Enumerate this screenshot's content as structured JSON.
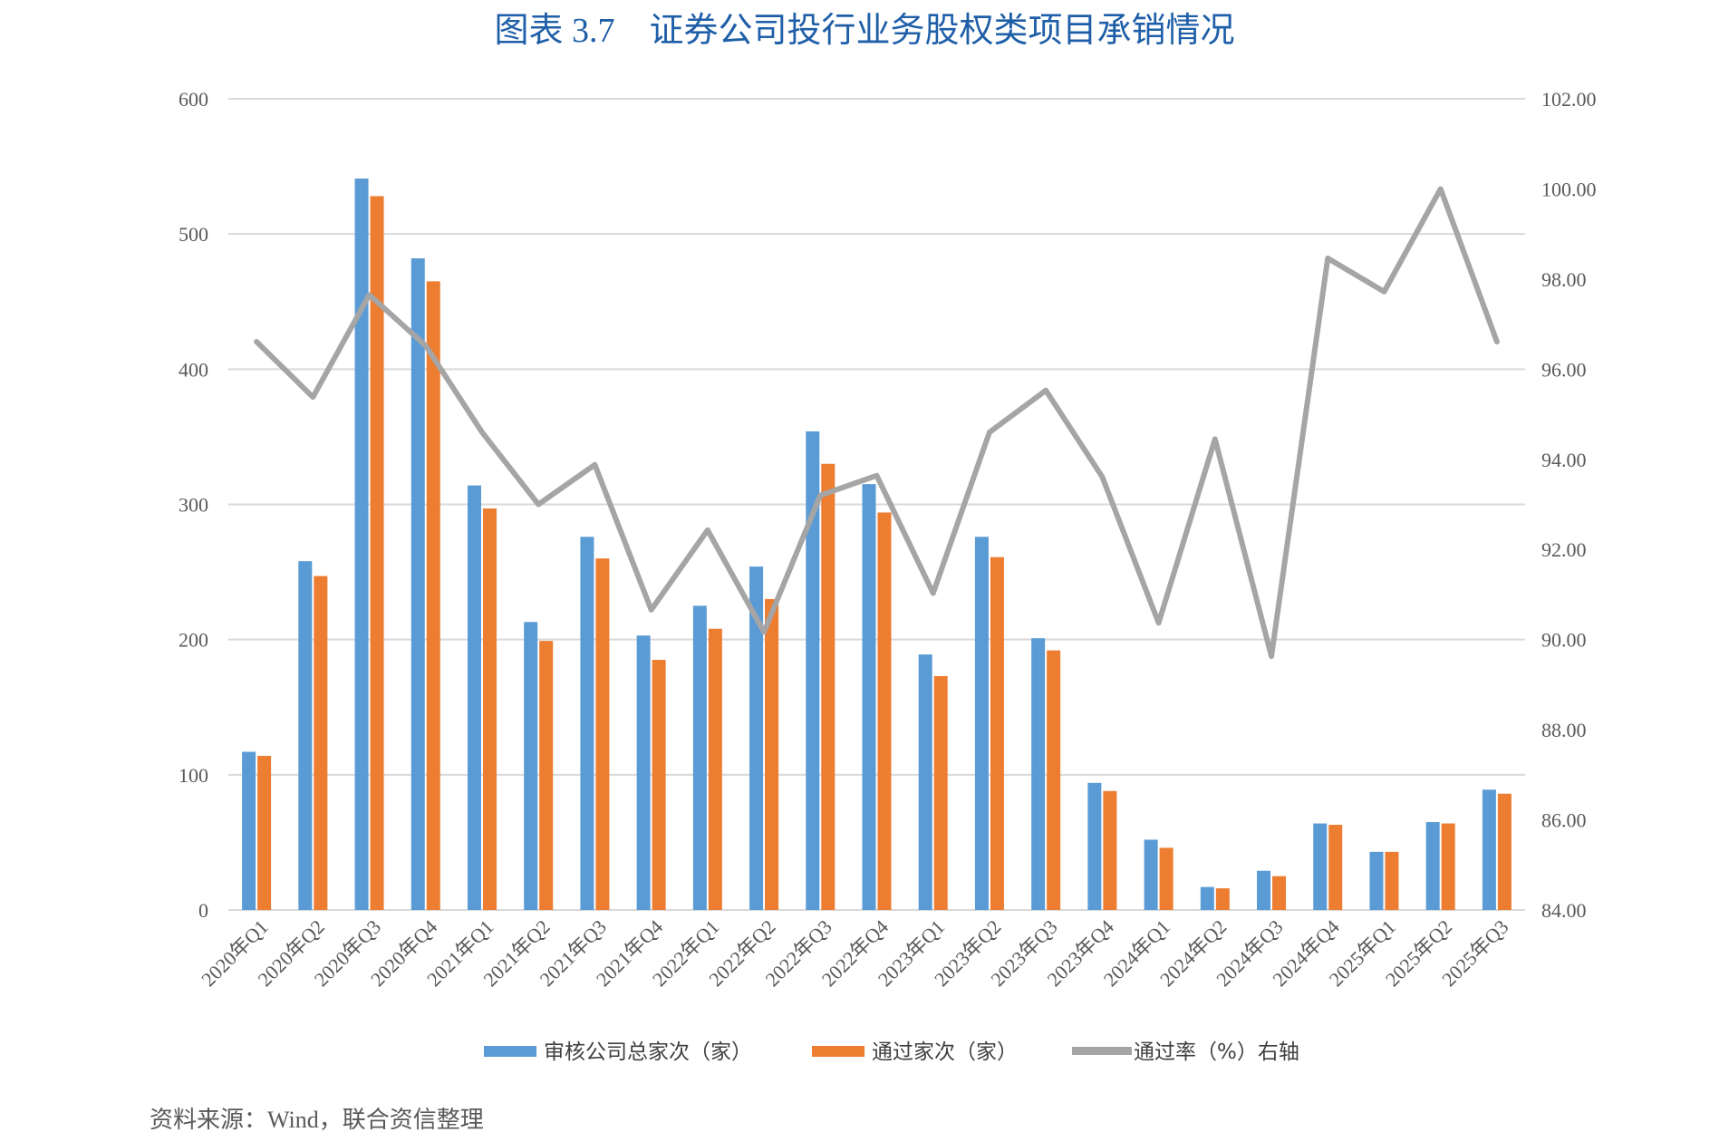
{
  "chart_data": {
    "type": "bar",
    "title": "图表 3.7　证券公司投行业务股权类项目承销情况",
    "source": "资料来源：Wind，联合资信整理",
    "categories": [
      "2020年Q1",
      "2020年Q2",
      "2020年Q3",
      "2020年Q4",
      "2021年Q1",
      "2021年Q2",
      "2021年Q3",
      "2021年Q4",
      "2022年Q1",
      "2022年Q2",
      "2022年Q3",
      "2022年Q4",
      "2023年Q1",
      "2023年Q2",
      "2023年Q3",
      "2023年Q4",
      "2024年Q1",
      "2024年Q2",
      "2024年Q3",
      "2024年Q4",
      "2025年Q1",
      "2025年Q2",
      "2025年Q3"
    ],
    "series": [
      {
        "name": "审核公司总家次（家）",
        "type": "bar",
        "axis": "left",
        "color": "#5b9bd5",
        "values": [
          117,
          258,
          541,
          482,
          314,
          213,
          276,
          203,
          225,
          254,
          354,
          315,
          189,
          276,
          201,
          94,
          52,
          17,
          29,
          64,
          43,
          65,
          89
        ]
      },
      {
        "name": "通过家次（家）",
        "type": "bar",
        "axis": "left",
        "color": "#ed7d31",
        "values": [
          114,
          247,
          528,
          465,
          297,
          199,
          260,
          185,
          208,
          230,
          330,
          294,
          173,
          261,
          192,
          88,
          46,
          16,
          25,
          63,
          43,
          64,
          86
        ]
      },
      {
        "name": "通过率（%）右轴",
        "type": "line",
        "axis": "right",
        "color": "#a5a5a5",
        "values": [
          96.61,
          95.38,
          97.65,
          96.52,
          94.6,
          93.0,
          93.88,
          90.66,
          92.43,
          90.17,
          93.2,
          93.64,
          91.03,
          94.6,
          95.53,
          93.61,
          90.37,
          94.45,
          89.63,
          98.46,
          97.72,
          100.0,
          96.61
        ]
      }
    ],
    "y_left": {
      "range": [
        0,
        600
      ],
      "ticks": [
        "0",
        "100",
        "200",
        "300",
        "400",
        "500",
        "600"
      ]
    },
    "y_right": {
      "range": [
        84,
        102
      ],
      "ticks": [
        "84.00",
        "86.00",
        "88.00",
        "90.00",
        "92.00",
        "94.00",
        "96.00",
        "98.00",
        "100.00",
        "102.00"
      ]
    },
    "grid": true,
    "legend_position": "bottom"
  }
}
